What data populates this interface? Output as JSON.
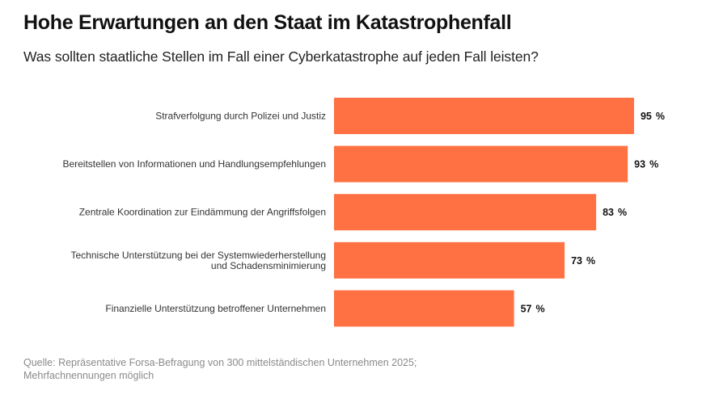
{
  "chart_data": {
    "type": "bar",
    "orientation": "horizontal",
    "title": "Hohe Erwartungen an den Staat im Katastrophenfall",
    "subtitle": "Was sollten staatliche Stellen im Fall einer Cyberkatastrophe auf jeden Fall leisten?",
    "categories": [
      [
        "Strafverfolgung durch Polizei und Justiz"
      ],
      [
        "Bereitstellen von Informationen und Handlungsempfehlungen"
      ],
      [
        "Zentrale Koordination zur Eindämmung der Angriffsfolgen"
      ],
      [
        "Technische Unterstützung bei der Systemwiederherstellung",
        "und Schadensminimierung"
      ],
      [
        "Finanzielle Unterstützung betroffener Unternehmen"
      ]
    ],
    "values": [
      95,
      93,
      83,
      73,
      57
    ],
    "value_suffix": " %",
    "bar_color": "#FF7043",
    "xlim": [
      0,
      100
    ],
    "grid": false,
    "legend": "none",
    "source": "Quelle: Repräsentative Forsa-Befragung von 300 mittelständischen Unternehmen 2025; Mehrfachnennungen möglich"
  }
}
